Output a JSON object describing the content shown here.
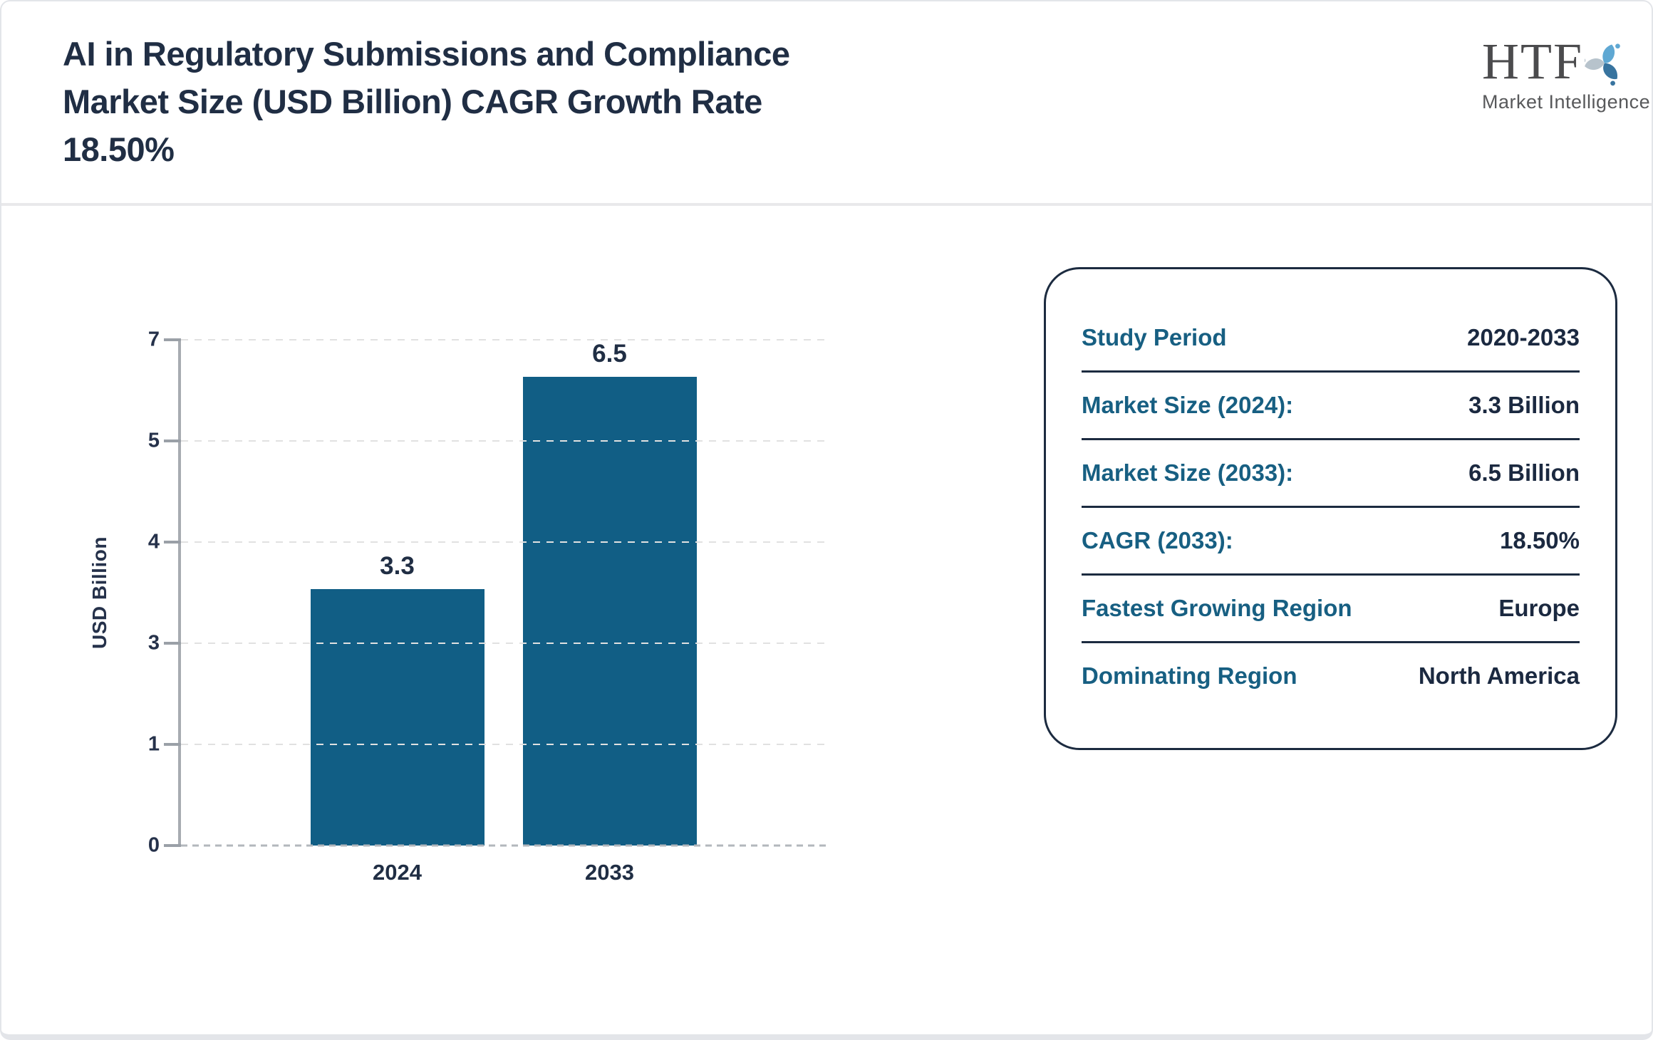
{
  "header": {
    "title": "AI in Regulatory Submissions and Compliance Market Size (USD Billion) CAGR Growth Rate 18.50%",
    "title_lines": [
      "AI in Regulatory Submissions and Compliance",
      "Market Size (USD Billion) CAGR Growth Rate",
      "18.50%"
    ]
  },
  "logo": {
    "monogram": "HTF",
    "tagline": "Market Intelligence",
    "swirl_colors": [
      "#5fa8d3",
      "#38749f",
      "#b7c3cc"
    ]
  },
  "chart_data": {
    "type": "bar",
    "title": "AI in Regulatory Submissions and Compliance Market Size (USD Billion)",
    "categories": [
      "2024",
      "2033"
    ],
    "values": [
      3.3,
      6.5
    ],
    "value_labels": [
      "3.3",
      "6.5"
    ],
    "xlabel": "",
    "ylabel": "USD Billion",
    "ytick_labels": [
      "7",
      "5",
      "4",
      "3",
      "1",
      "0"
    ],
    "ylim": [
      0,
      7
    ],
    "grid": "horizontal-dashed",
    "legend": "none",
    "bar_color": "#115e85"
  },
  "panel": {
    "rows": [
      {
        "label": "Study Period",
        "value": "2020-2033"
      },
      {
        "label": "Market Size (2024):",
        "value": "3.3 Billion"
      },
      {
        "label": "Market Size (2033):",
        "value": "6.5 Billion"
      },
      {
        "label": "CAGR (2033):",
        "value": "18.50%"
      },
      {
        "label": "Fastest Growing Region",
        "value": "Europe"
      },
      {
        "label": "Dominating Region",
        "value": "North America"
      }
    ]
  },
  "colors": {
    "title_text": "#202e44",
    "value_text": "#1b2940",
    "label_teal": "#175f82",
    "bar": "#115e85",
    "axis_gray": "#a7abb1",
    "gridline": "#e1e1e1",
    "panel_border": "#1c2b40",
    "page_border": "#e3e5e9"
  }
}
